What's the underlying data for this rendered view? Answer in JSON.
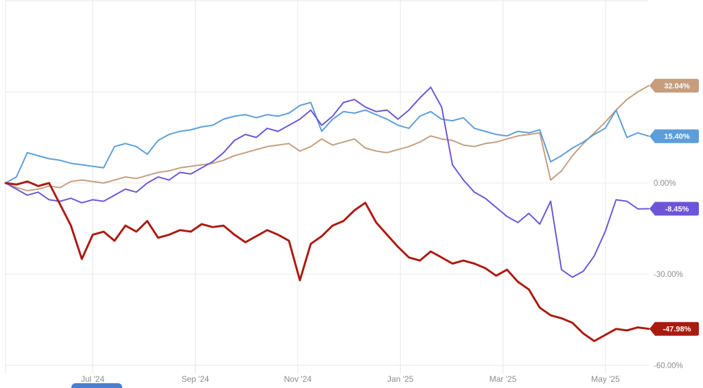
{
  "page": {
    "background": "#ffffff",
    "gridline_color": "#e7e7e7",
    "axis_label_color": "#8c8c8c"
  },
  "chart_data": {
    "type": "line",
    "title": "",
    "subtitle": "",
    "legend": "none",
    "grid": true,
    "unit": "%",
    "x_axis": {
      "tick_labels": [
        "Jul '24",
        "Sep '24",
        "Nov '24",
        "Jan '25",
        "Mar '25",
        "May '25"
      ]
    },
    "y_axis": {
      "ylim": [
        -62,
        62
      ],
      "ticks": [
        {
          "value": 60,
          "label": ""
        },
        {
          "value": 30,
          "label": ""
        },
        {
          "value": 0,
          "label": "0.00%"
        },
        {
          "value": -30,
          "label": "-30.00%"
        },
        {
          "value": -60,
          "label": "-60.00%"
        }
      ]
    },
    "series": [
      {
        "name": "tan-series",
        "color": "#C69E7E",
        "stroke_width": 2,
        "end_label": "32.04%",
        "end_value": 32.04,
        "values": [
          0,
          -1.5,
          -2.5,
          -2,
          -1,
          -1.5,
          0.5,
          1,
          0.5,
          0,
          1,
          2,
          1.5,
          2.5,
          3.5,
          4,
          5,
          5.5,
          6,
          6.5,
          7.5,
          9,
          10,
          11,
          12,
          12.5,
          13,
          10.5,
          12,
          14.5,
          12.5,
          13.5,
          14.5,
          11.5,
          10.5,
          10,
          11,
          12,
          13.5,
          15.5,
          14.5,
          14,
          12.5,
          12,
          13,
          13.5,
          14.5,
          15.5,
          16,
          16.5,
          1,
          4,
          9,
          13,
          16.5,
          20,
          24,
          27.5,
          30,
          32.04
        ]
      },
      {
        "name": "blue-series",
        "color": "#5C9EDA",
        "stroke_width": 2,
        "end_label": "15.40%",
        "end_value": 15.4,
        "values": [
          0,
          2,
          10,
          9,
          8,
          7.5,
          6.5,
          6,
          5.5,
          5,
          12,
          13,
          12,
          9.5,
          14,
          16,
          17,
          17.5,
          18.5,
          19,
          21,
          22,
          22.5,
          21.5,
          22.5,
          22,
          23,
          25.5,
          26.5,
          17,
          21,
          23.5,
          23,
          24,
          22.5,
          21,
          19,
          18,
          22,
          23.5,
          21,
          20.5,
          21.5,
          18,
          17,
          16,
          15.5,
          17,
          16.5,
          17.5,
          7,
          9,
          11.5,
          13.5,
          16,
          18,
          24,
          15,
          16.5,
          15.4
        ]
      },
      {
        "name": "purple-series",
        "color": "#6C55D8",
        "stroke_width": 2,
        "end_label": "-8.45%",
        "end_value": -8.45,
        "values": [
          0,
          -2,
          -4,
          -3,
          -5.5,
          -6,
          -5,
          -6.5,
          -5.5,
          -6,
          -4,
          -2,
          -3,
          0,
          2,
          1,
          3.5,
          3,
          5,
          7,
          10,
          14,
          16,
          15,
          18,
          17,
          19,
          21,
          24,
          19,
          22,
          26.5,
          27.5,
          25,
          23.5,
          24,
          21,
          24,
          28,
          31.5,
          25,
          6,
          1,
          -3,
          -5,
          -8,
          -11,
          -13,
          -10,
          -13.5,
          -6,
          -28.5,
          -31,
          -29,
          -24,
          -16,
          -5.5,
          -6,
          -8.5,
          -8.45
        ]
      },
      {
        "name": "red-series",
        "color": "#AB1A10",
        "stroke_width": 3,
        "end_label": "-47.98%",
        "end_value": -47.98,
        "values": [
          0,
          -0.5,
          0.5,
          -1,
          0,
          -7,
          -14,
          -25,
          -17,
          -16,
          -19,
          -14,
          -16,
          -12.5,
          -18,
          -17,
          -15.5,
          -16,
          -13.5,
          -14.5,
          -14,
          -17,
          -19.5,
          -17.5,
          -15.5,
          -17,
          -19,
          -32,
          -20,
          -17.5,
          -14,
          -12.5,
          -9,
          -6.5,
          -13,
          -17,
          -21,
          -24.5,
          -25.5,
          -22.5,
          -24.5,
          -26.5,
          -25.5,
          -26.5,
          -28,
          -30.5,
          -28.5,
          -32.5,
          -35,
          -41,
          -43.5,
          -44.5,
          -46,
          -49.5,
          -52,
          -50,
          -48,
          -48.5,
          -47.5,
          -47.98
        ]
      }
    ]
  }
}
